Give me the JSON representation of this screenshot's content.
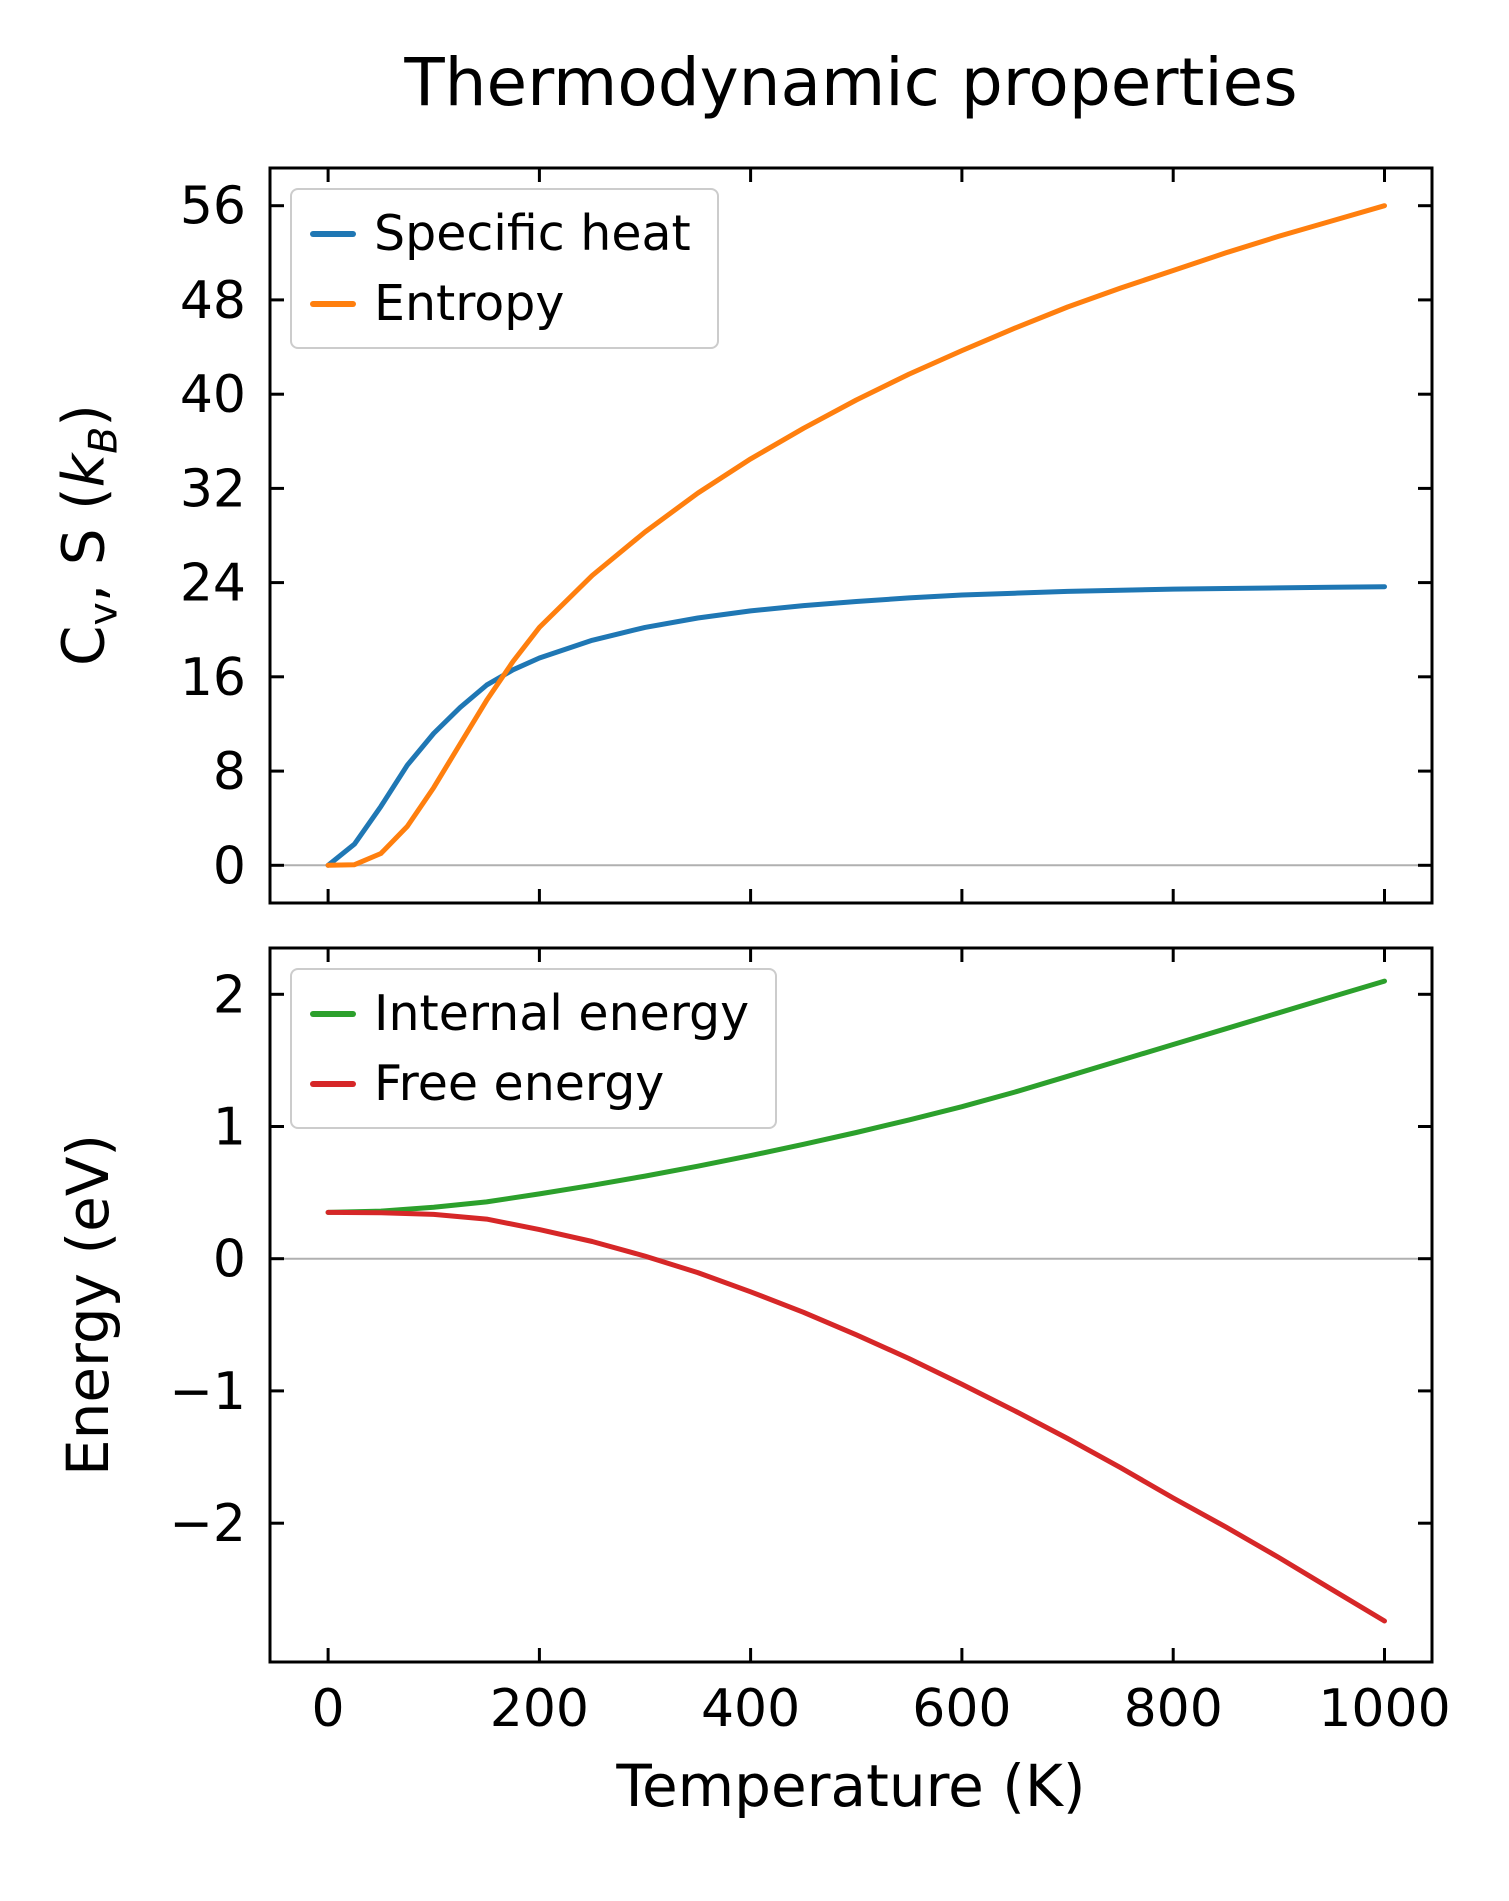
{
  "style": {
    "background": "#ffffff",
    "axes_color": "#000000",
    "text_color": "#000000",
    "zero_line_color": "#b0b0b0",
    "legend_border_color": "#cccccc"
  },
  "chart_data": [
    {
      "type": "line",
      "title": "Thermodynamic properties",
      "xlabel": "",
      "ylabel": "C_v, S (k_B)",
      "xlim": [
        -55,
        1045
      ],
      "ylim": [
        -3.2,
        59.2
      ],
      "xticks": [
        0,
        200,
        400,
        600,
        800,
        1000
      ],
      "yticks": [
        0,
        8,
        16,
        24,
        32,
        40,
        48,
        56
      ],
      "grid": false,
      "zero_line": true,
      "legend_position": "upper left",
      "series": [
        {
          "name": "Specific heat",
          "color": "#1f77b4",
          "x": [
            0,
            25,
            50,
            75,
            100,
            125,
            150,
            175,
            200,
            250,
            300,
            350,
            400,
            450,
            500,
            550,
            600,
            650,
            700,
            750,
            800,
            850,
            900,
            950,
            1000
          ],
          "y": [
            0,
            1.8,
            5.0,
            8.5,
            11.2,
            13.4,
            15.3,
            16.6,
            17.6,
            19.1,
            20.2,
            21.0,
            21.6,
            22.05,
            22.4,
            22.7,
            22.95,
            23.1,
            23.25,
            23.35,
            23.45,
            23.5,
            23.55,
            23.6,
            23.65
          ]
        },
        {
          "name": "Entropy",
          "color": "#ff7f0e",
          "x": [
            0,
            25,
            50,
            75,
            100,
            125,
            150,
            175,
            200,
            250,
            300,
            350,
            400,
            450,
            500,
            550,
            600,
            650,
            700,
            750,
            800,
            850,
            900,
            950,
            1000
          ],
          "y": [
            0,
            0.05,
            1.0,
            3.3,
            6.6,
            10.3,
            14.0,
            17.3,
            20.2,
            24.6,
            28.3,
            31.6,
            34.5,
            37.1,
            39.5,
            41.7,
            43.7,
            45.6,
            47.4,
            49.0,
            50.5,
            52.0,
            53.4,
            54.7,
            56.0
          ]
        }
      ]
    },
    {
      "type": "line",
      "title": "",
      "xlabel": "Temperature (K)",
      "ylabel": "Energy (eV)",
      "xlim": [
        -55,
        1045
      ],
      "ylim": [
        -3.05,
        2.35
      ],
      "xticks": [
        0,
        200,
        400,
        600,
        800,
        1000
      ],
      "yticks": [
        -2,
        -1,
        0,
        1,
        2
      ],
      "grid": false,
      "zero_line": true,
      "legend_position": "upper left",
      "series": [
        {
          "name": "Internal energy",
          "color": "#2ca02c",
          "x": [
            0,
            50,
            100,
            150,
            200,
            250,
            300,
            350,
            400,
            450,
            500,
            550,
            600,
            650,
            700,
            750,
            800,
            850,
            900,
            950,
            1000
          ],
          "y": [
            0.35,
            0.36,
            0.39,
            0.43,
            0.49,
            0.555,
            0.625,
            0.7,
            0.78,
            0.865,
            0.955,
            1.05,
            1.15,
            1.26,
            1.38,
            1.5,
            1.62,
            1.74,
            1.86,
            1.98,
            2.1
          ]
        },
        {
          "name": "Free energy",
          "color": "#d62728",
          "x": [
            0,
            50,
            100,
            150,
            200,
            250,
            300,
            350,
            400,
            450,
            500,
            550,
            600,
            650,
            700,
            750,
            800,
            850,
            900,
            950,
            1000
          ],
          "y": [
            0.35,
            0.348,
            0.335,
            0.3,
            0.22,
            0.13,
            0.02,
            -0.105,
            -0.25,
            -0.405,
            -0.575,
            -0.755,
            -0.95,
            -1.15,
            -1.36,
            -1.58,
            -1.81,
            -2.03,
            -2.26,
            -2.5,
            -2.74
          ]
        }
      ]
    }
  ]
}
